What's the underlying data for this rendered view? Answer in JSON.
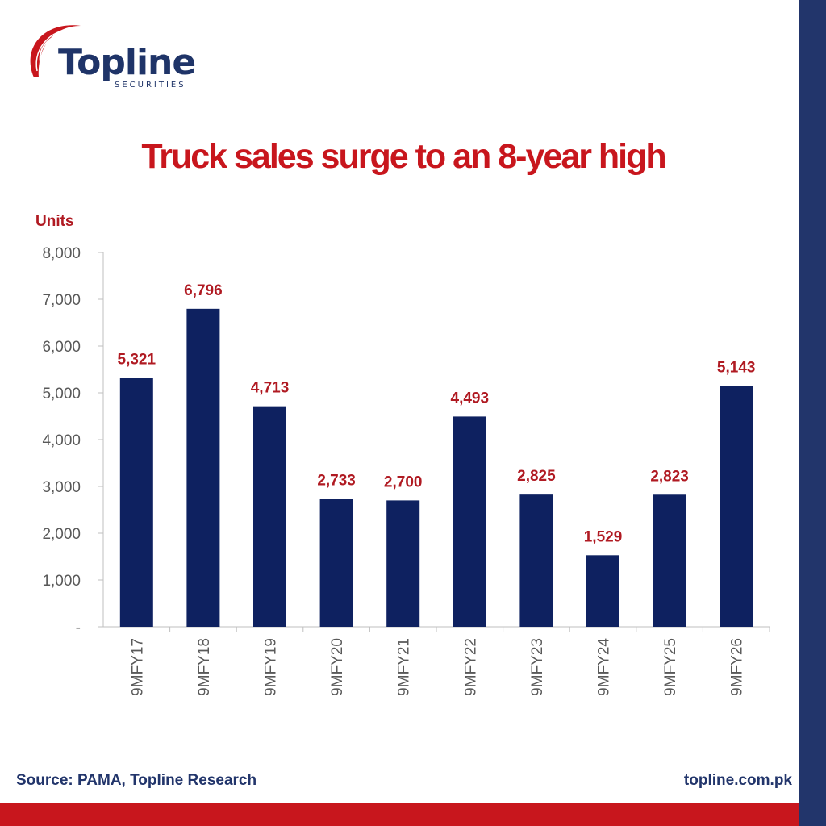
{
  "logo": {
    "name": "Topline",
    "sub": "SECURITIES"
  },
  "colors": {
    "bar": "#0e2160",
    "accent": "#c8161d",
    "navy": "#22356b"
  },
  "chart_data": {
    "type": "bar",
    "title": "Truck sales surge to an 8-year high",
    "ylabel": "Units",
    "xlabel": "",
    "categories": [
      "9MFY17",
      "9MFY18",
      "9MFY19",
      "9MFY20",
      "9MFY21",
      "9MFY22",
      "9MFY23",
      "9MFY24",
      "9MFY25",
      "9MFY26"
    ],
    "values": [
      5321,
      6796,
      4713,
      2733,
      2700,
      4493,
      2825,
      1529,
      2823,
      5143
    ],
    "value_labels": [
      "5,321",
      "6,796",
      "4,713",
      "2,733",
      "2,700",
      "4,493",
      "2,825",
      "1,529",
      "2,823",
      "5,143"
    ],
    "ylim": [
      0,
      8000
    ],
    "yticks": [
      0,
      1000,
      2000,
      3000,
      4000,
      5000,
      6000,
      7000,
      8000
    ],
    "ytick_labels": [
      "-",
      "1,000",
      "2,000",
      "3,000",
      "4,000",
      "5,000",
      "6,000",
      "7,000",
      "8,000"
    ],
    "grid": false,
    "legend": "none"
  },
  "footer": {
    "source": "Source: PAMA, Topline Research",
    "website": "topline.com.pk"
  }
}
